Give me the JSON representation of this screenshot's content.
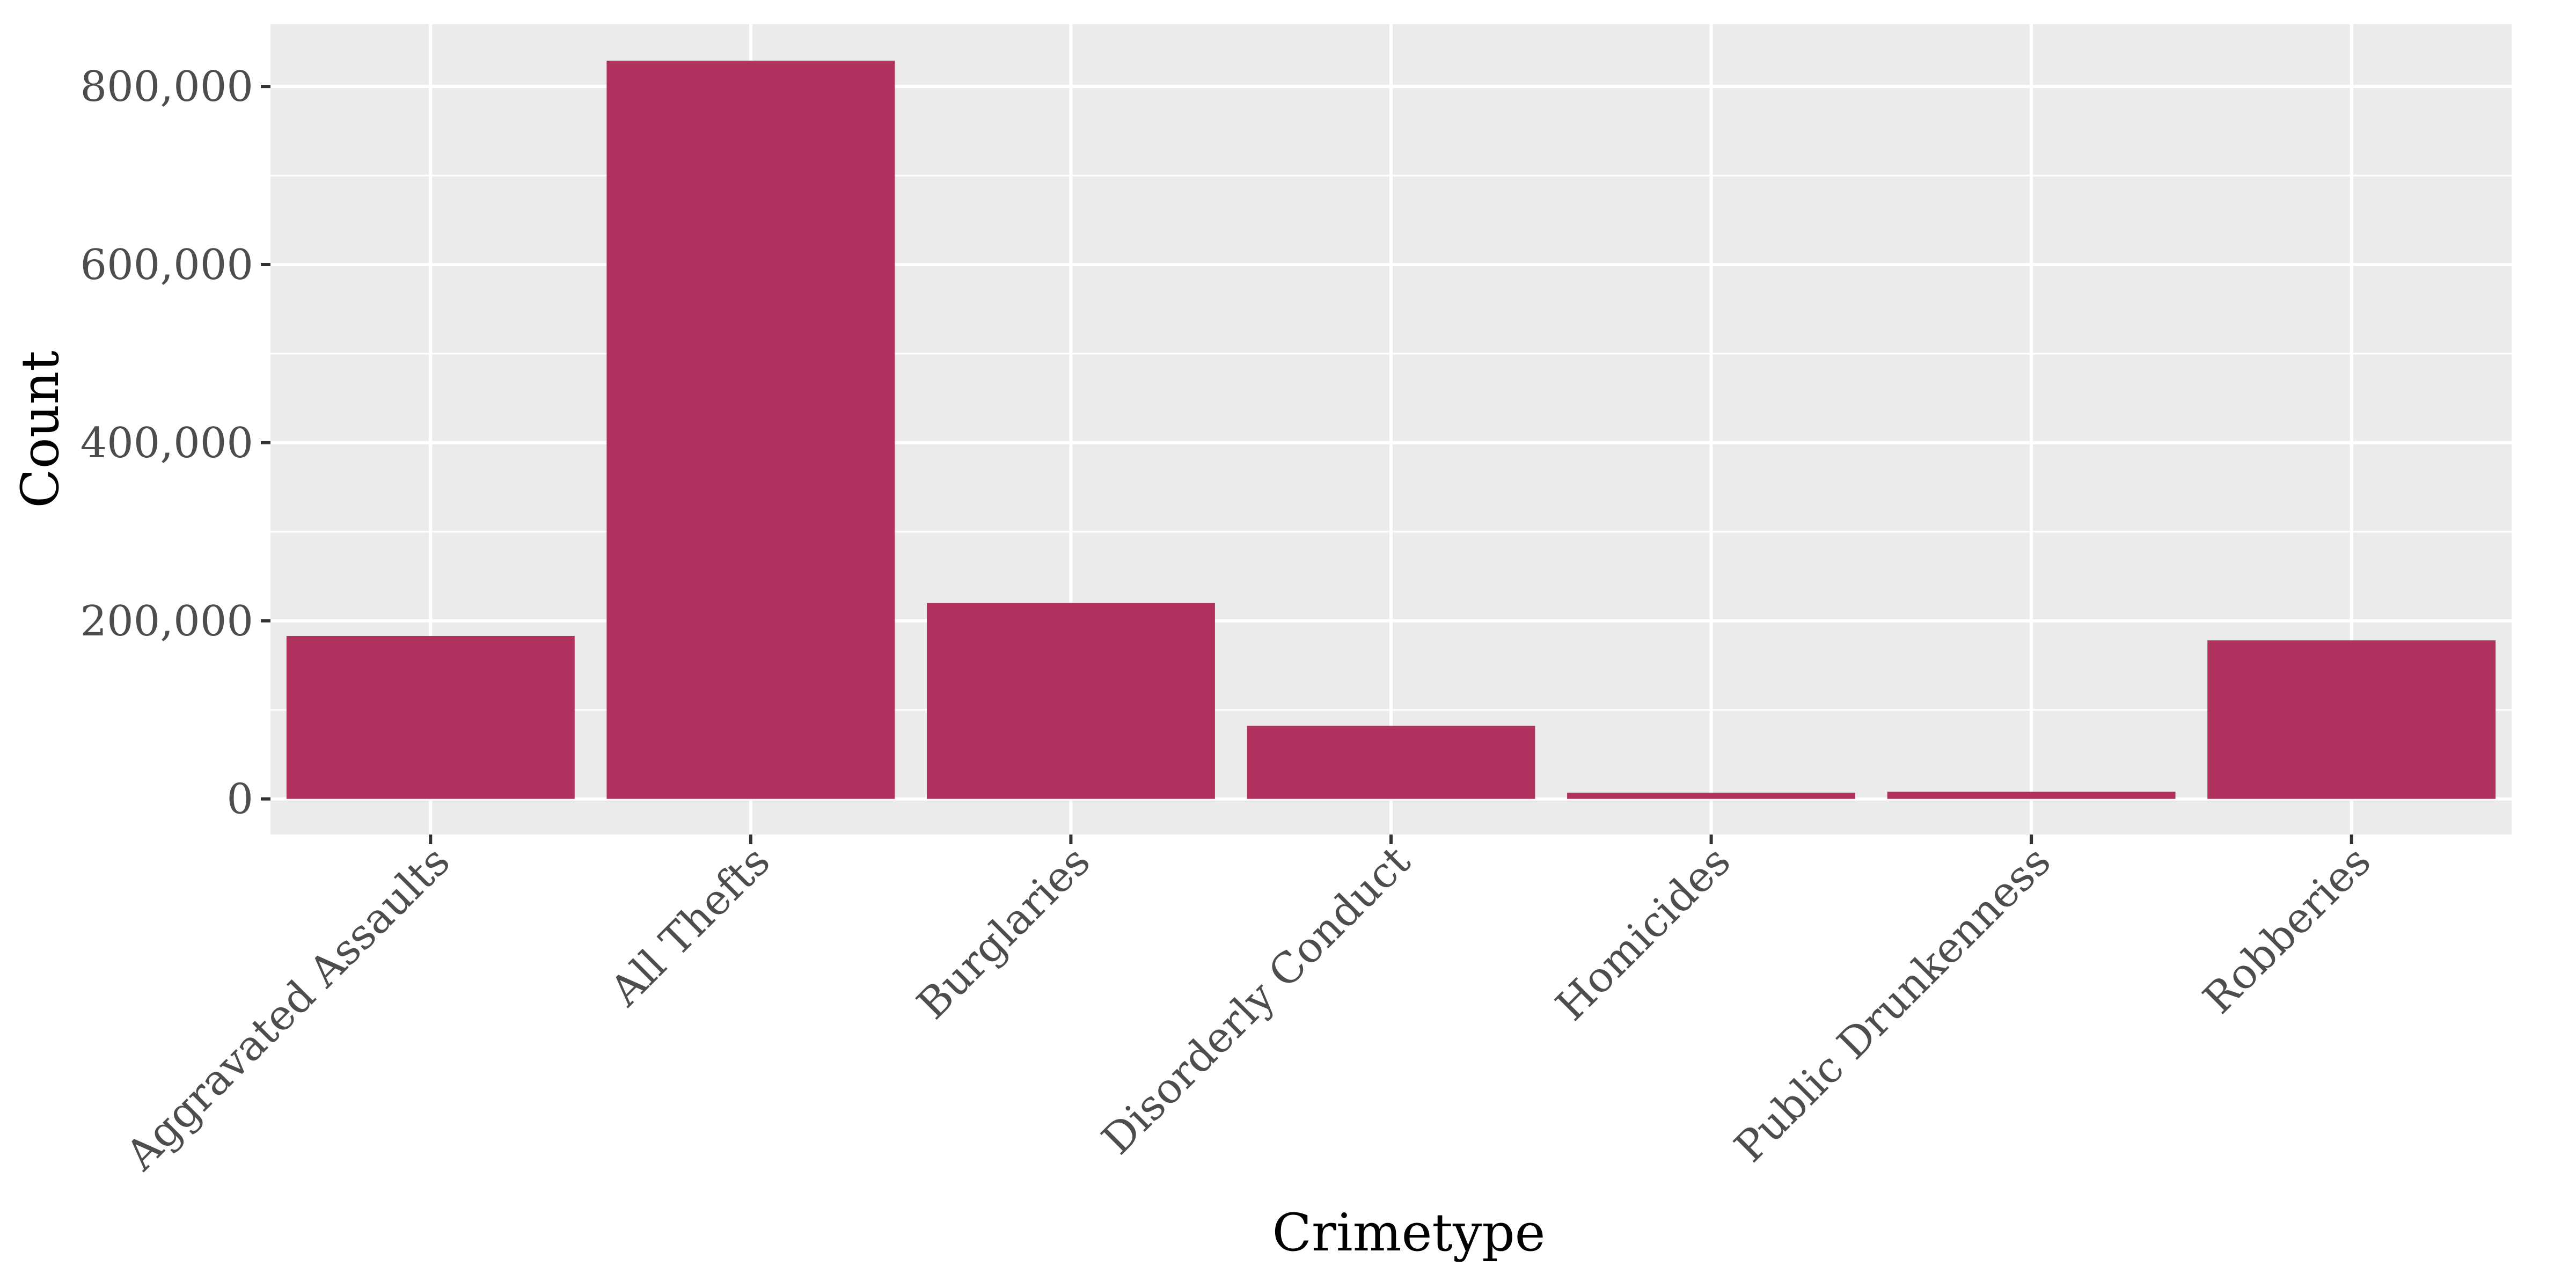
{
  "chart_data": {
    "type": "bar",
    "xlabel": "Crimetype",
    "ylabel": "Count",
    "categories": [
      "Aggravated Assaults",
      "All Thefts",
      "Burglaries",
      "Disorderly Conduct",
      "Homicides",
      "Public Drunkenness",
      "Robberies"
    ],
    "values": [
      183000,
      829000,
      220000,
      82000,
      7000,
      8000,
      178000
    ],
    "ylim": [
      -40000,
      870000
    ],
    "yticks": [
      0,
      200000,
      400000,
      600000,
      800000
    ],
    "ytick_labels": [
      "0",
      "200,000",
      "400,000",
      "600,000",
      "800,000"
    ],
    "grid": true,
    "legend": "none",
    "colors": {
      "bar": "#b0305e",
      "panel": "#ebebeb",
      "grid": "#ffffff",
      "tick": "#333333",
      "tick_text": "#4d4d4d"
    }
  }
}
